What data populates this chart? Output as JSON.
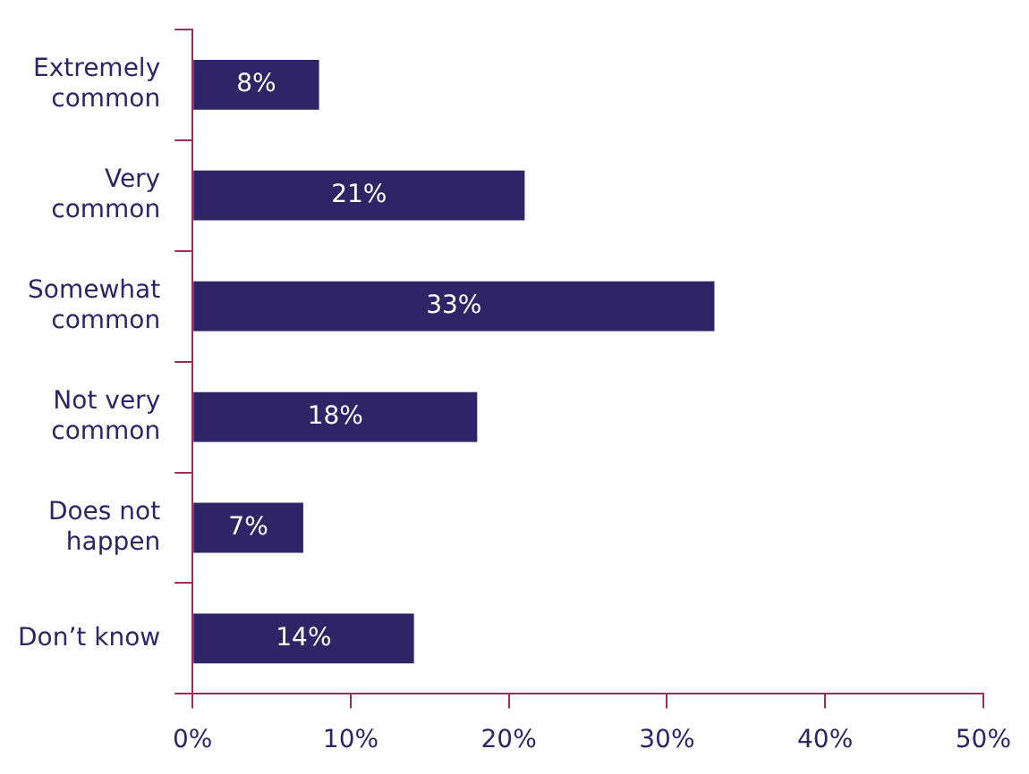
{
  "chart_data": {
    "type": "bar",
    "orientation": "horizontal",
    "categories": [
      "Extremely common",
      "Very common",
      "Somewhat common",
      "Not very common",
      "Does not happen",
      "Don’t know"
    ],
    "values": [
      8,
      21,
      33,
      18,
      7,
      14
    ],
    "color": "#2e2466",
    "xlim": [
      0,
      50
    ],
    "xticks": [
      {
        "value": 0,
        "label": "0%"
      },
      {
        "value": 10,
        "label": "10%"
      },
      {
        "value": 20,
        "label": "20%"
      },
      {
        "value": 30,
        "label": "30%"
      },
      {
        "value": 40,
        "label": "40%"
      },
      {
        "value": 50,
        "label": "50%"
      }
    ],
    "value_labels": [
      "8%",
      "21%",
      "33%",
      "18%",
      "7%",
      "14%"
    ],
    "grid": false,
    "legend": false
  }
}
